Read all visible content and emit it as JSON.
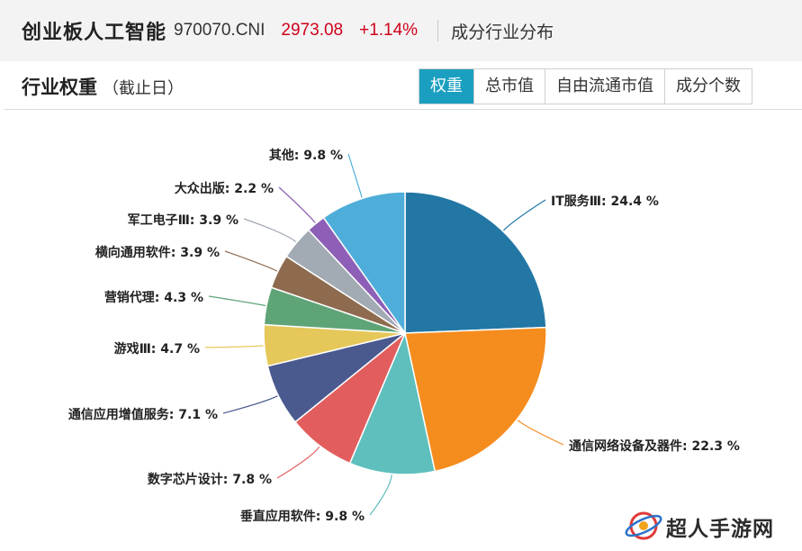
{
  "header": {
    "index_name": "创业板人工智能",
    "index_code": "970070.CNI",
    "price": "2973.08",
    "change": "+1.14%",
    "section_link": "成分行业分布"
  },
  "card": {
    "title": "行业权重",
    "subtitle": "（截止日）",
    "tabs": [
      {
        "label": "权重",
        "active": true
      },
      {
        "label": "总市值",
        "active": false
      },
      {
        "label": "自由流通市值",
        "active": false
      },
      {
        "label": "成分个数",
        "active": false
      }
    ]
  },
  "watermark": {
    "text": "超人手游网"
  },
  "colors": {
    "accent": "#1a9fc0",
    "up": "#d0021b"
  },
  "chart_data": {
    "type": "pie",
    "unit": "%",
    "series": [
      {
        "name": "IT服务Ⅲ",
        "value": 24.4,
        "color": "#2277a4"
      },
      {
        "name": "通信网络设备及器件",
        "value": 22.3,
        "color": "#f58c1e"
      },
      {
        "name": "垂直应用软件",
        "value": 9.8,
        "color": "#5ebfbd"
      },
      {
        "name": "数字芯片设计",
        "value": 7.8,
        "color": "#e25e5e"
      },
      {
        "name": "通信应用增值服务",
        "value": 7.1,
        "color": "#4a5a8f"
      },
      {
        "name": "游戏Ⅲ",
        "value": 4.7,
        "color": "#e5c75a"
      },
      {
        "name": "营销代理",
        "value": 4.3,
        "color": "#5fa477"
      },
      {
        "name": "横向通用软件",
        "value": 3.9,
        "color": "#8e6b4f"
      },
      {
        "name": "军工电子Ⅲ",
        "value": 3.9,
        "color": "#a2aab4"
      },
      {
        "name": "大众出版",
        "value": 2.2,
        "color": "#8d5fb6"
      },
      {
        "name": "其他",
        "value": 9.8,
        "color": "#4eaed9"
      }
    ]
  }
}
